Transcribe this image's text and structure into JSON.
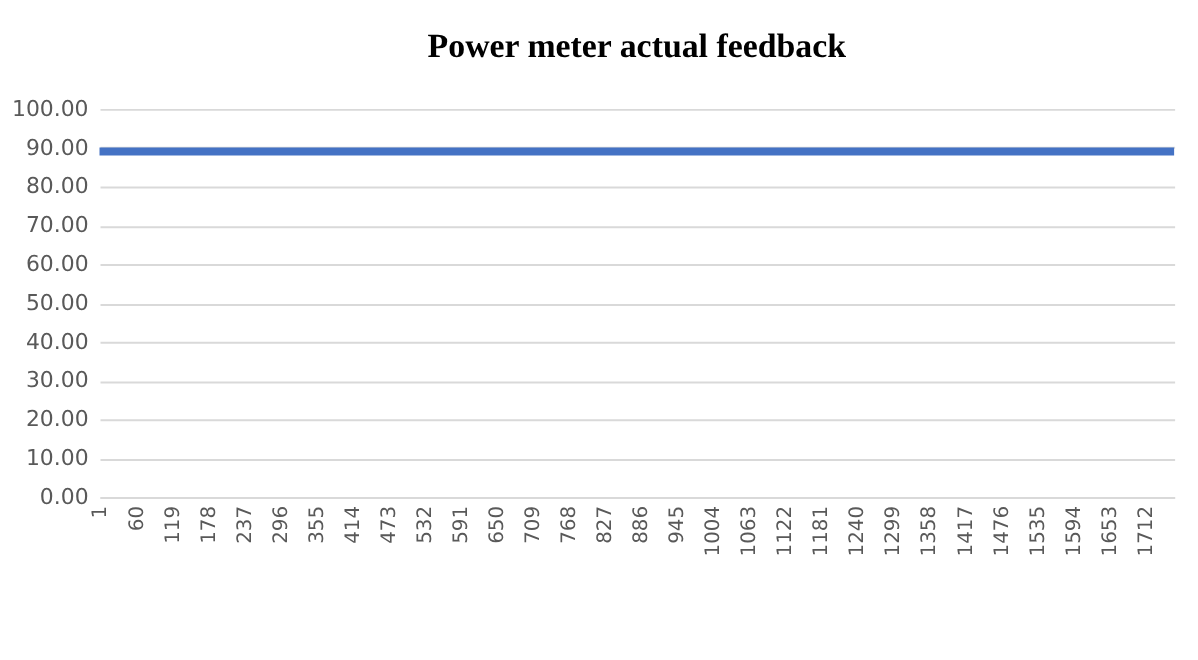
{
  "chart_data": {
    "type": "line",
    "title": "Power meter actual feedback",
    "x": [
      1,
      1760
    ],
    "series": [
      {
        "color": "#4472c4",
        "values": [
          89,
          89
        ]
      }
    ],
    "xlim": [
      1,
      1760
    ],
    "xticks": [
      1,
      60,
      119,
      178,
      237,
      296,
      355,
      414,
      473,
      532,
      591,
      650,
      709,
      768,
      827,
      886,
      945,
      1004,
      1063,
      1122,
      1181,
      1240,
      1299,
      1358,
      1417,
      1476,
      1535,
      1594,
      1653,
      1712
    ],
    "ylim": [
      0,
      100
    ],
    "yticks": [
      {
        "value": 0,
        "label": "0.00"
      },
      {
        "value": 10,
        "label": "10.00"
      },
      {
        "value": 20,
        "label": "20.00"
      },
      {
        "value": 30,
        "label": "30.00"
      },
      {
        "value": 40,
        "label": "40.00"
      },
      {
        "value": 50,
        "label": "50.00"
      },
      {
        "value": 60,
        "label": "60.00"
      },
      {
        "value": 70,
        "label": "70.00"
      },
      {
        "value": 80,
        "label": "80.00"
      },
      {
        "value": 90,
        "label": "90.00"
      },
      {
        "value": 100,
        "label": "100.00"
      }
    ],
    "grid": "y",
    "marker": "none",
    "line_style": "solid"
  }
}
